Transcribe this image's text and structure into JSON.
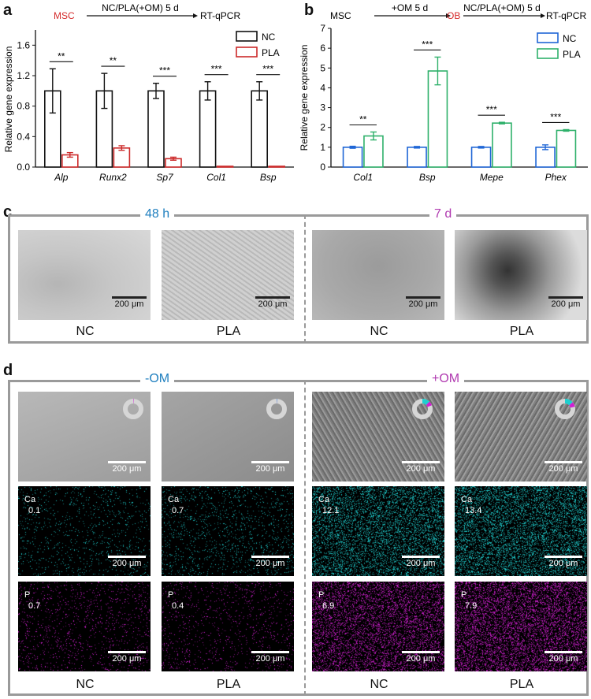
{
  "panel_a": {
    "letter": "a",
    "scheme": {
      "start": "MSC",
      "arrow": "NC/PLA(+OM) 5 d",
      "end": "RT-qPCR"
    },
    "colors": {
      "NC": "#111111",
      "PLA": "#cc2a2a",
      "msc": "#d42a2a"
    },
    "chart_data": {
      "type": "bar",
      "ylabel": "Relative gene expression",
      "ylim": [
        0,
        1.8
      ],
      "yticks": [
        "0.0",
        "0.4",
        "0.8",
        "1.2",
        "1.6"
      ],
      "categories": [
        "Alp",
        "Runx2",
        "Sp7",
        "Col1",
        "Bsp"
      ],
      "series": [
        {
          "name": "NC",
          "values": [
            1.0,
            1.0,
            1.0,
            1.0,
            1.0
          ],
          "errors": [
            0.29,
            0.23,
            0.1,
            0.12,
            0.12
          ]
        },
        {
          "name": "PLA",
          "values": [
            0.16,
            0.25,
            0.11,
            0.01,
            0.01
          ],
          "errors": [
            0.03,
            0.03,
            0.02,
            0.0,
            0.0
          ]
        }
      ],
      "significance": [
        "**",
        "**",
        "***",
        "***",
        "***"
      ],
      "legend": "top-right"
    }
  },
  "panel_b": {
    "letter": "b",
    "scheme": {
      "start": "MSC",
      "arrow1": "+OM 5 d",
      "mid": "OB",
      "arrow2": "NC/PLA(+OM) 5 d",
      "end": "RT-qPCR"
    },
    "colors": {
      "NC": "#1f66d6",
      "PLA": "#2eb06a",
      "ob": "#d42a2a"
    },
    "chart_data": {
      "type": "bar",
      "ylabel": "Relative gene expression",
      "ylim": [
        0,
        7
      ],
      "yticks": [
        "0",
        "1",
        "2",
        "3",
        "4",
        "5",
        "6",
        "7"
      ],
      "categories": [
        "Col1",
        "Bsp",
        "Mepe",
        "Phex"
      ],
      "series": [
        {
          "name": "NC",
          "values": [
            1.0,
            1.0,
            1.0,
            1.0
          ],
          "errors": [
            0.05,
            0.04,
            0.04,
            0.12
          ]
        },
        {
          "name": "PLA",
          "values": [
            1.57,
            4.85,
            2.22,
            1.85
          ],
          "errors": [
            0.2,
            0.7,
            0.04,
            0.04
          ]
        }
      ],
      "significance": [
        "**",
        "***",
        "***",
        "***"
      ],
      "legend": "top-right"
    }
  },
  "panel_c": {
    "letter": "c",
    "group1": "48 h",
    "group2": "7 d",
    "group1_color": "#1f7fbf",
    "group2_color": "#b03ab0",
    "scalebar": "200 μm",
    "captions": [
      "NC",
      "PLA",
      "NC",
      "PLA"
    ]
  },
  "panel_d": {
    "letter": "d",
    "group1": "-OM",
    "group2": "+OM",
    "group1_color": "#1f7fbf",
    "group2_color": "#b03ab0",
    "scalebar": "200 μm",
    "captions": [
      "NC",
      "PLA",
      "NC",
      "PLA"
    ],
    "ca_label": "Ca",
    "p_label": "P",
    "ca_values": [
      "0.1",
      "0.7",
      "12.1",
      "13.4"
    ],
    "p_values": [
      "0.7",
      "0.4",
      "6.9",
      "7.9"
    ],
    "ca_color": "#1ecfcf",
    "p_color": "#d21fd2",
    "donut": [
      {
        "ca": 0.1,
        "p": 0.7
      },
      {
        "ca": 0.7,
        "p": 0.4
      },
      {
        "ca": 12.1,
        "p": 6.9
      },
      {
        "ca": 13.4,
        "p": 7.9
      }
    ]
  }
}
